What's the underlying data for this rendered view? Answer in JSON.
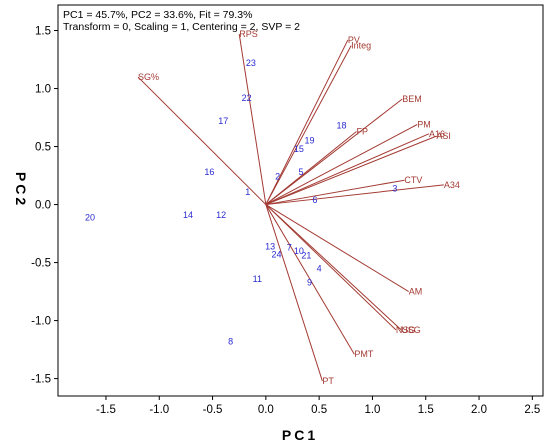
{
  "info_lines": [
    "PC1 = 45.7%, PC2 = 33.6%, Fit = 79.3%",
    "Transform = 0, Scaling = 1, Centering = 2, SVP = 2"
  ],
  "colors": {
    "vector": "#a33a33",
    "observation": "#2a2ad0",
    "frame": "#000000"
  },
  "chart_data": {
    "type": "scatter",
    "subtype": "PCA biplot",
    "xlabel": "PC1",
    "ylabel": "PC2",
    "xlim": [
      -1.95,
      2.6
    ],
    "ylim": [
      -1.65,
      1.72
    ],
    "x_ticks": [
      -1.5,
      -1.0,
      -0.5,
      0.0,
      0.5,
      1.0,
      1.5,
      2.0,
      2.5
    ],
    "y_ticks": [
      -1.5,
      -1.0,
      -0.5,
      0.0,
      0.5,
      1.0,
      1.5
    ],
    "x_tick_labels": [
      "-1.5",
      "-1.0",
      "-0.5",
      "0.0",
      "0.5",
      "1.0",
      "1.5",
      "2.0",
      "2.5"
    ],
    "y_tick_labels": [
      "-1.5",
      "-1.0",
      "-0.5",
      "0.0",
      "0.5",
      "1.0",
      "1.5"
    ],
    "grid": false,
    "variables": [
      {
        "name": "RPS",
        "x": -0.25,
        "y": 1.47
      },
      {
        "name": "SG%",
        "x": -1.2,
        "y": 1.1
      },
      {
        "name": "PV",
        "x": 0.77,
        "y": 1.42
      },
      {
        "name": "Integ",
        "x": 0.8,
        "y": 1.37
      },
      {
        "name": "BEM",
        "x": 1.28,
        "y": 0.91
      },
      {
        "name": "FP",
        "x": 0.85,
        "y": 0.63
      },
      {
        "name": "PM",
        "x": 1.42,
        "y": 0.69
      },
      {
        "name": "A16",
        "x": 1.53,
        "y": 0.61
      },
      {
        "name": "ASI",
        "x": 1.6,
        "y": 0.59
      },
      {
        "name": "CTV",
        "x": 1.3,
        "y": 0.21
      },
      {
        "name": "A34",
        "x": 1.67,
        "y": 0.17
      },
      {
        "name": "AM",
        "x": 1.34,
        "y": -0.75
      },
      {
        "name": "NSG",
        "x": 1.22,
        "y": -1.08
      },
      {
        "name": "USG",
        "x": 1.27,
        "y": -1.08
      },
      {
        "name": "PMT",
        "x": 0.83,
        "y": -1.29
      },
      {
        "name": "PT",
        "x": 0.53,
        "y": -1.52
      }
    ],
    "observations": [
      {
        "label": "1",
        "x": -0.17,
        "y": 0.11
      },
      {
        "label": "2",
        "x": 0.11,
        "y": 0.24
      },
      {
        "label": "3",
        "x": 1.21,
        "y": 0.14
      },
      {
        "label": "4",
        "x": 0.5,
        "y": -0.55
      },
      {
        "label": "5",
        "x": 0.33,
        "y": 0.28
      },
      {
        "label": "6",
        "x": 0.46,
        "y": 0.04
      },
      {
        "label": "7",
        "x": 0.22,
        "y": -0.37
      },
      {
        "label": "8",
        "x": -0.33,
        "y": -1.18
      },
      {
        "label": "9",
        "x": 0.41,
        "y": -0.67
      },
      {
        "label": "10",
        "x": 0.31,
        "y": -0.4
      },
      {
        "label": "11",
        "x": -0.08,
        "y": -0.64
      },
      {
        "label": "12",
        "x": -0.42,
        "y": -0.09
      },
      {
        "label": "13",
        "x": 0.04,
        "y": -0.36
      },
      {
        "label": "14",
        "x": -0.73,
        "y": -0.09
      },
      {
        "label": "15",
        "x": 0.31,
        "y": 0.48
      },
      {
        "label": "16",
        "x": -0.53,
        "y": 0.28
      },
      {
        "label": "17",
        "x": -0.4,
        "y": 0.72
      },
      {
        "label": "18",
        "x": 0.71,
        "y": 0.68
      },
      {
        "label": "19",
        "x": 0.41,
        "y": 0.55
      },
      {
        "label": "20",
        "x": -1.65,
        "y": -0.11
      },
      {
        "label": "21",
        "x": 0.38,
        "y": -0.44
      },
      {
        "label": "22",
        "x": -0.18,
        "y": 0.92
      },
      {
        "label": "23",
        "x": -0.14,
        "y": 1.22
      },
      {
        "label": "24",
        "x": 0.1,
        "y": -0.43
      }
    ]
  }
}
